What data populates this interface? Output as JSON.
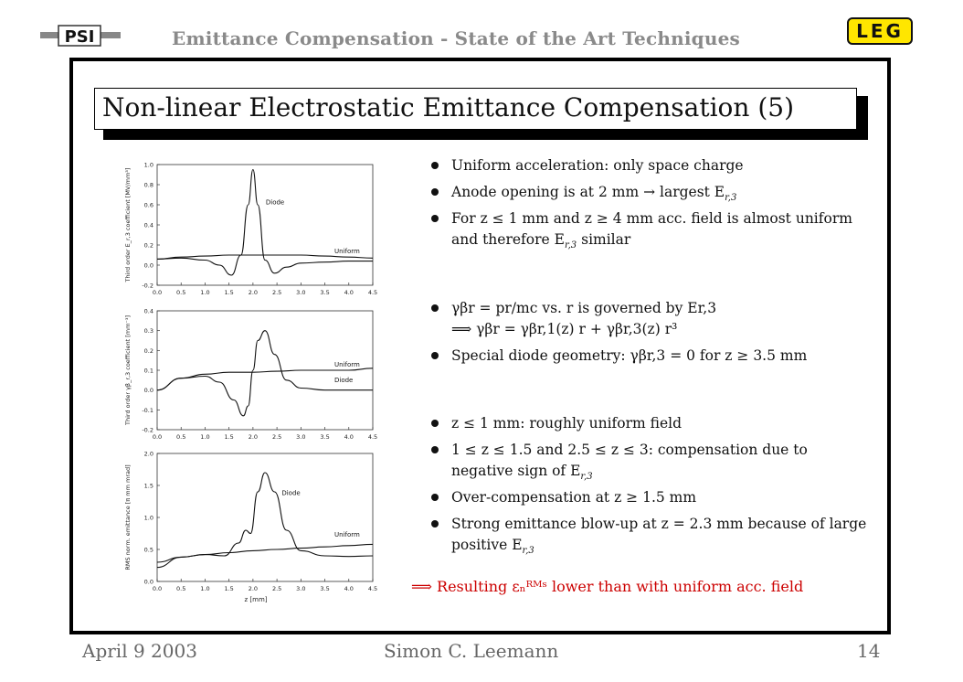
{
  "header": {
    "title": "Emittance Compensation - State of the Art Techniques",
    "left_logo": "PSI",
    "right_logo": "LEG"
  },
  "slide": {
    "title": "Non-linear Electrostatic Emittance Compensation (5)"
  },
  "bullets": [
    "Uniform acceleration: only space charge",
    "Anode opening is at 2 mm → largest E",
    "For z ≤ 1 mm and z ≥ 4 mm acc. field is almost uniform and therefore E",
    "γβ",
    "Special diode geometry: γβ",
    "z ≤ 1 mm: roughly uniform field",
    "1 ≤ z ≤ 1.5 and 2.5 ≤ z ≤ 3: compensation due to negative sign of E",
    "Over-compensation at z ≥ 1.5 mm",
    "Strong emittance blow-up at z = 2.3 mm because of large positive E"
  ],
  "bullets_parts": {
    "b2_tail": "r,3",
    "b3_sub": "r,3",
    "b3_tail": "similar",
    "b4_line1": "γβr = pr/mc vs. r is governed by Er,3",
    "b4_line2": "⟹ γβr  =  γβr,1(z) r  +  γβr,3(z) r³",
    "b5": "Special diode geometry: γβr,3 = 0 for z ≥ 3.5 mm",
    "b7_sub": "r,3",
    "b9_sub": "r,3"
  },
  "result": "⟹ Resulting εₙᴿᴹˢ lower than with uniform acc. field",
  "footer": {
    "date": "April 9 2003",
    "author": "Simon C. Leemann",
    "page": "14"
  },
  "chart_data": [
    {
      "type": "line",
      "ylabel": "Third order E_r,3 coefficient [MV/mm³]",
      "xlabel": "",
      "xlim": [
        0.0,
        4.5
      ],
      "ylim": [
        -0.2,
        1.0
      ],
      "xticks": [
        "0.0",
        "0.5",
        "1.0",
        "1.5",
        "2.0",
        "2.5",
        "3.0",
        "3.5",
        "4.0",
        "4.5"
      ],
      "yticks": [
        "-0.2",
        "0.0",
        "0.2",
        "0.4",
        "0.6",
        "0.8",
        "1.0"
      ],
      "series": [
        {
          "name": "Diode",
          "x": [
            0,
            0.5,
            1.0,
            1.3,
            1.55,
            1.75,
            1.9,
            2.0,
            2.1,
            2.25,
            2.45,
            2.7,
            3.0,
            3.5,
            4.0,
            4.5
          ],
          "y": [
            0.06,
            0.07,
            0.05,
            0.0,
            -0.1,
            0.1,
            0.6,
            0.95,
            0.6,
            0.05,
            -0.08,
            -0.02,
            0.02,
            0.03,
            0.04,
            0.04
          ]
        },
        {
          "name": "Uniform",
          "x": [
            0,
            0.5,
            1.0,
            1.5,
            2.0,
            2.5,
            3.0,
            3.5,
            4.0,
            4.5
          ],
          "y": [
            0.06,
            0.08,
            0.09,
            0.1,
            0.1,
            0.1,
            0.1,
            0.09,
            0.08,
            0.07
          ]
        }
      ]
    },
    {
      "type": "line",
      "ylabel": "Third order γβ_r,3 coefficient [mm⁻³]",
      "xlabel": "",
      "xlim": [
        0.0,
        4.5
      ],
      "ylim": [
        -0.2,
        0.4
      ],
      "xticks": [
        "0.0",
        "0.5",
        "1.0",
        "1.5",
        "2.0",
        "2.5",
        "3.0",
        "3.5",
        "4.0",
        "4.5"
      ],
      "yticks": [
        "-0.2",
        "-0.1",
        "0.0",
        "0.1",
        "0.2",
        "0.3",
        "0.4"
      ],
      "series": [
        {
          "name": "Uniform",
          "x": [
            0,
            0.5,
            1.0,
            1.5,
            2.0,
            2.5,
            3.0,
            3.5,
            4.0,
            4.5
          ],
          "y": [
            0.0,
            0.06,
            0.08,
            0.09,
            0.09,
            0.095,
            0.1,
            0.1,
            0.1,
            0.11
          ]
        },
        {
          "name": "Diode",
          "x": [
            0,
            0.5,
            1.0,
            1.3,
            1.6,
            1.8,
            1.9,
            2.0,
            2.1,
            2.25,
            2.45,
            2.7,
            3.0,
            3.5,
            4.0,
            4.5
          ],
          "y": [
            0.0,
            0.06,
            0.07,
            0.04,
            -0.05,
            -0.13,
            -0.08,
            0.1,
            0.25,
            0.3,
            0.18,
            0.05,
            0.01,
            0.0,
            0.0,
            0.0
          ]
        }
      ]
    },
    {
      "type": "line",
      "ylabel": "RMS norm. emittance [π mm mrad]",
      "xlabel": "z [mm]",
      "xlim": [
        0.0,
        4.5
      ],
      "ylim": [
        0.0,
        2.0
      ],
      "xticks": [
        "0.0",
        "0.5",
        "1.0",
        "1.5",
        "2.0",
        "2.5",
        "3.0",
        "3.5",
        "4.0",
        "4.5"
      ],
      "yticks": [
        "0.0",
        "0.5",
        "1.0",
        "1.5",
        "2.0"
      ],
      "series": [
        {
          "name": "Diode",
          "x": [
            0,
            0.5,
            1.0,
            1.4,
            1.7,
            1.85,
            1.95,
            2.1,
            2.25,
            2.45,
            2.7,
            3.0,
            3.5,
            4.0,
            4.5
          ],
          "y": [
            0.22,
            0.38,
            0.42,
            0.4,
            0.6,
            0.8,
            0.75,
            1.4,
            1.7,
            1.4,
            0.8,
            0.48,
            0.4,
            0.39,
            0.4
          ]
        },
        {
          "name": "Uniform",
          "x": [
            0,
            0.5,
            1.0,
            1.5,
            2.0,
            2.5,
            3.0,
            3.5,
            4.0,
            4.5
          ],
          "y": [
            0.3,
            0.38,
            0.42,
            0.45,
            0.48,
            0.5,
            0.52,
            0.54,
            0.56,
            0.58
          ]
        }
      ]
    }
  ]
}
